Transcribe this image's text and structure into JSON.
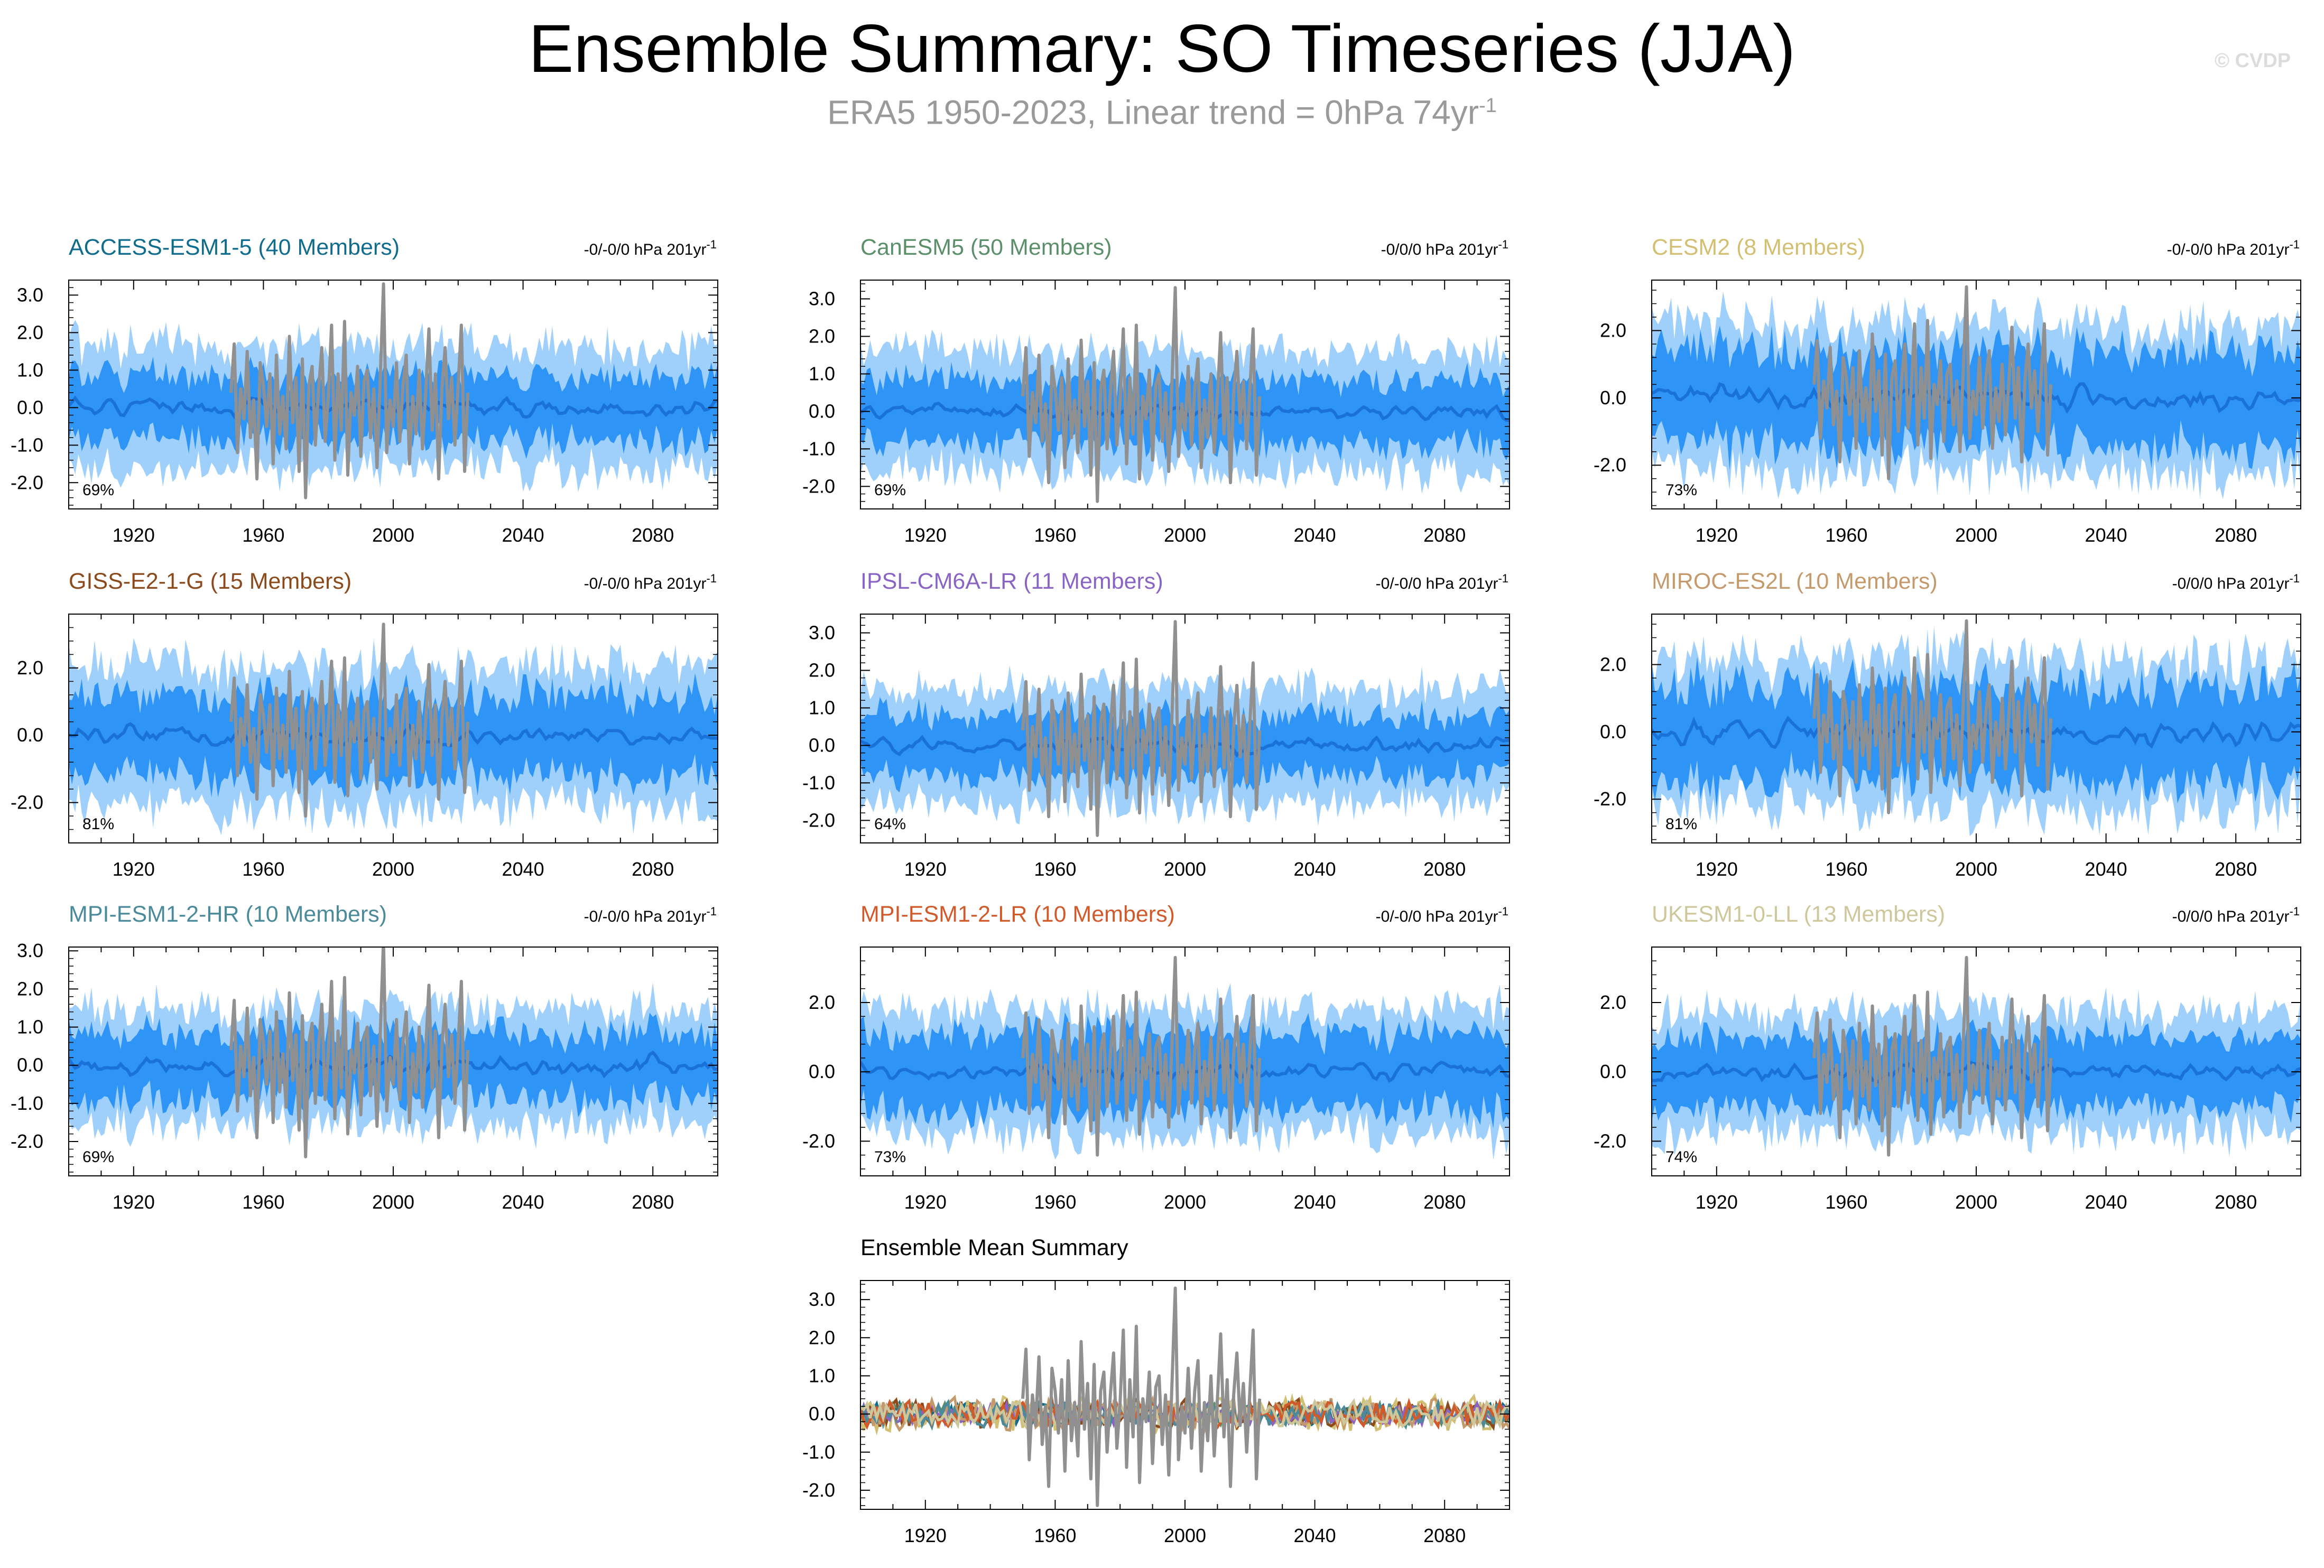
{
  "header": {
    "title": "Ensemble Summary: SO Timeseries (JJA)",
    "subtitle_main": "ERA5 1950-2023, Linear trend = 0hPa 74yr",
    "subtitle_exp": "-1",
    "credit": "© CVDP"
  },
  "colors": {
    "band_outer": "#9fd0fb",
    "band_inner": "#2e95f6",
    "mean_line": "#1a72d8",
    "obs_line": "#909090"
  },
  "chart_data": [
    {
      "type": "area",
      "title": "ACCESS-ESM1-5 (40 Members)",
      "title_color": "#0f6c8c",
      "trend_text": "-0/-0/0 hPa 201yr",
      "trend_exp": "-1",
      "percent": "69%",
      "xlim": [
        1900,
        2100
      ],
      "ylim": [
        -2.7,
        3.4
      ],
      "yticks": [
        3.0,
        2.0,
        1.0,
        0.0,
        -1.0,
        -2.0
      ],
      "ytick_labels": [
        "3.0",
        "2.0",
        "1.0",
        "0.0",
        "-1.0",
        "-2.0"
      ],
      "xticks": [
        1920,
        1960,
        2000,
        2040,
        2080
      ],
      "xtick_labels": [
        "1920",
        "1960",
        "2000",
        "2040",
        "2080"
      ],
      "outer_amp": 1.65,
      "inner_amp": 0.85,
      "mean_amp": 0.3,
      "seed": 1
    },
    {
      "type": "area",
      "title": "CanESM5 (50 Members)",
      "title_color": "#5a8f6a",
      "trend_text": "-0/0/0 hPa 201yr",
      "trend_exp": "-1",
      "percent": "69%",
      "xlim": [
        1900,
        2100
      ],
      "ylim": [
        -2.6,
        3.5
      ],
      "yticks": [
        3.0,
        2.0,
        1.0,
        0.0,
        -1.0,
        -2.0
      ],
      "ytick_labels": [
        "3.0",
        "2.0",
        "1.0",
        "0.0",
        "-1.0",
        "-2.0"
      ],
      "xticks": [
        1920,
        1960,
        2000,
        2040,
        2080
      ],
      "xtick_labels": [
        "1920",
        "1960",
        "2000",
        "2040",
        "2080"
      ],
      "outer_amp": 1.6,
      "inner_amp": 0.85,
      "mean_amp": 0.3,
      "seed": 2
    },
    {
      "type": "area",
      "title": "CESM2 (8 Members)",
      "title_color": "#d2bf72",
      "trend_text": "-0/-0/0 hPa 201yr",
      "trend_exp": "-1",
      "percent": "73%",
      "xlim": [
        1900,
        2100
      ],
      "ylim": [
        -3.3,
        3.5
      ],
      "yticks": [
        2.0,
        0.0,
        -2.0
      ],
      "ytick_labels": [
        "2.0",
        "0.0",
        "-2.0"
      ],
      "xticks": [
        1920,
        1960,
        2000,
        2040,
        2080
      ],
      "xtick_labels": [
        "1920",
        "1960",
        "2000",
        "2040",
        "2080"
      ],
      "outer_amp": 2.2,
      "inner_amp": 1.4,
      "mean_amp": 0.5,
      "seed": 3
    },
    {
      "type": "area",
      "title": "GISS-E2-1-G (15 Members)",
      "title_color": "#8a4a1c",
      "trend_text": "-0/-0/0 hPa 201yr",
      "trend_exp": "-1",
      "percent": "81%",
      "xlim": [
        1900,
        2100
      ],
      "ylim": [
        -3.2,
        3.6
      ],
      "yticks": [
        2.0,
        0.0,
        -2.0
      ],
      "ytick_labels": [
        "2.0",
        "0.0",
        "-2.0"
      ],
      "xticks": [
        1920,
        1960,
        2000,
        2040,
        2080
      ],
      "xtick_labels": [
        "1920",
        "1960",
        "2000",
        "2040",
        "2080"
      ],
      "outer_amp": 2.1,
      "inner_amp": 1.2,
      "mean_amp": 0.4,
      "seed": 4
    },
    {
      "type": "area",
      "title": "IPSL-CM6A-LR (11 Members)",
      "title_color": "#8a64c4",
      "trend_text": "-0/-0/0 hPa 201yr",
      "trend_exp": "-1",
      "percent": "64%",
      "xlim": [
        1900,
        2100
      ],
      "ylim": [
        -2.6,
        3.5
      ],
      "yticks": [
        3.0,
        2.0,
        1.0,
        0.0,
        -1.0,
        -2.0
      ],
      "ytick_labels": [
        "3.0",
        "2.0",
        "1.0",
        "0.0",
        "-1.0",
        "-2.0"
      ],
      "xticks": [
        1920,
        1960,
        2000,
        2040,
        2080
      ],
      "xtick_labels": [
        "1920",
        "1960",
        "2000",
        "2040",
        "2080"
      ],
      "outer_amp": 1.55,
      "inner_amp": 0.8,
      "mean_amp": 0.3,
      "seed": 5
    },
    {
      "type": "area",
      "title": "MIROC-ES2L (10 Members)",
      "title_color": "#c49a6c",
      "trend_text": "-0/0/0 hPa 201yr",
      "trend_exp": "-1",
      "percent": "81%",
      "xlim": [
        1900,
        2100
      ],
      "ylim": [
        -3.3,
        3.5
      ],
      "yticks": [
        2.0,
        0.0,
        -2.0
      ],
      "ytick_labels": [
        "2.0",
        "0.0",
        "-2.0"
      ],
      "xticks": [
        1920,
        1960,
        2000,
        2040,
        2080
      ],
      "xtick_labels": [
        "1920",
        "1960",
        "2000",
        "2040",
        "2080"
      ],
      "outer_amp": 2.2,
      "inner_amp": 1.4,
      "mean_amp": 0.5,
      "seed": 6
    },
    {
      "type": "area",
      "title": "MPI-ESM1-2-HR (10 Members)",
      "title_color": "#4a8a9a",
      "trend_text": "-0/-0/0 hPa 201yr",
      "trend_exp": "-1",
      "percent": "69%",
      "xlim": [
        1900,
        2100
      ],
      "ylim": [
        -2.9,
        3.1
      ],
      "yticks": [
        3.0,
        2.0,
        1.0,
        0.0,
        -1.0,
        -2.0
      ],
      "ytick_labels": [
        "3.0",
        "2.0",
        "1.0",
        "0.0",
        "-1.0",
        "-2.0"
      ],
      "xticks": [
        1920,
        1960,
        2000,
        2040,
        2080
      ],
      "xtick_labels": [
        "1920",
        "1960",
        "2000",
        "2040",
        "2080"
      ],
      "outer_amp": 1.5,
      "inner_amp": 0.85,
      "mean_amp": 0.35,
      "seed": 7
    },
    {
      "type": "area",
      "title": "MPI-ESM1-2-LR (10 Members)",
      "title_color": "#d05a2a",
      "trend_text": "-0/-0/0 hPa 201yr",
      "trend_exp": "-1",
      "percent": "73%",
      "xlim": [
        1900,
        2100
      ],
      "ylim": [
        -3.0,
        3.6
      ],
      "yticks": [
        2.0,
        0.0,
        -2.0
      ],
      "ytick_labels": [
        "2.0",
        "0.0",
        "-2.0"
      ],
      "xticks": [
        1920,
        1960,
        2000,
        2040,
        2080
      ],
      "xtick_labels": [
        "1920",
        "1960",
        "2000",
        "2040",
        "2080"
      ],
      "outer_amp": 1.8,
      "inner_amp": 1.1,
      "mean_amp": 0.35,
      "seed": 8
    },
    {
      "type": "area",
      "title": "UKESM1-0-LL (13 Members)",
      "title_color": "#cfc79c",
      "trend_text": "-0/0/0 hPa 201yr",
      "trend_exp": "-1",
      "percent": "74%",
      "xlim": [
        1900,
        2100
      ],
      "ylim": [
        -3.0,
        3.6
      ],
      "yticks": [
        2.0,
        0.0,
        -2.0
      ],
      "ytick_labels": [
        "2.0",
        "0.0",
        "-2.0"
      ],
      "xticks": [
        1920,
        1960,
        2000,
        2040,
        2080
      ],
      "xtick_labels": [
        "1920",
        "1960",
        "2000",
        "2040",
        "2080"
      ],
      "outer_amp": 1.75,
      "inner_amp": 1.0,
      "mean_amp": 0.35,
      "seed": 9
    },
    {
      "type": "line",
      "title": "Ensemble Mean Summary",
      "title_color": "#000000",
      "xlim": [
        1900,
        2100
      ],
      "ylim": [
        -2.5,
        3.5
      ],
      "yticks": [
        3.0,
        2.0,
        1.0,
        0.0,
        -1.0,
        -2.0
      ],
      "ytick_labels": [
        "3.0",
        "2.0",
        "1.0",
        "0.0",
        "-1.0",
        "-2.0"
      ],
      "xticks": [
        1920,
        1960,
        2000,
        2040,
        2080
      ],
      "xtick_labels": [
        "1920",
        "1960",
        "2000",
        "2040",
        "2080"
      ],
      "series": [
        {
          "name": "ACCESS-ESM1-5",
          "color": "#0f6c8c",
          "amp": 0.3,
          "seed": 11
        },
        {
          "name": "CanESM5",
          "color": "#5a8f6a",
          "amp": 0.3,
          "seed": 12
        },
        {
          "name": "CESM2",
          "color": "#d2bf72",
          "amp": 0.5,
          "seed": 13
        },
        {
          "name": "GISS-E2-1-G",
          "color": "#8a4a1c",
          "amp": 0.4,
          "seed": 14
        },
        {
          "name": "IPSL-CM6A-LR",
          "color": "#8a64c4",
          "amp": 0.3,
          "seed": 15
        },
        {
          "name": "MIROC-ES2L",
          "color": "#c49a6c",
          "amp": 0.45,
          "seed": 16
        },
        {
          "name": "MPI-ESM1-2-HR",
          "color": "#4a8a9a",
          "amp": 0.35,
          "seed": 17
        },
        {
          "name": "MPI-ESM1-2-LR",
          "color": "#d05a2a",
          "amp": 0.35,
          "seed": 18
        },
        {
          "name": "UKESM1-0-LL",
          "color": "#cfc79c",
          "amp": 0.35,
          "seed": 19
        }
      ]
    }
  ],
  "observed": {
    "name": "ERA5",
    "years": [
      1950,
      1951,
      1952,
      1953,
      1954,
      1955,
      1956,
      1957,
      1958,
      1959,
      1960,
      1961,
      1962,
      1963,
      1964,
      1965,
      1966,
      1967,
      1968,
      1969,
      1970,
      1971,
      1972,
      1973,
      1974,
      1975,
      1976,
      1977,
      1978,
      1979,
      1980,
      1981,
      1982,
      1983,
      1984,
      1985,
      1986,
      1987,
      1988,
      1989,
      1990,
      1991,
      1992,
      1993,
      1994,
      1995,
      1996,
      1997,
      1998,
      1999,
      2000,
      2001,
      2002,
      2003,
      2004,
      2005,
      2006,
      2007,
      2008,
      2009,
      2010,
      2011,
      2012,
      2013,
      2014,
      2015,
      2016,
      2017,
      2018,
      2019,
      2020,
      2021,
      2022,
      2023
    ],
    "values": [
      0.4,
      1.7,
      -1.2,
      0.5,
      -0.3,
      1.5,
      -0.8,
      0.2,
      -1.9,
      1.2,
      0.6,
      -0.5,
      0.9,
      -1.5,
      1.4,
      -0.7,
      0.3,
      -1.1,
      1.9,
      -0.4,
      0.8,
      -1.7,
      1.3,
      -2.4,
      0.6,
      1.1,
      -1.0,
      0.5,
      1.6,
      -0.9,
      0.3,
      2.2,
      -1.4,
      0.9,
      -0.6,
      2.3,
      -1.8,
      0.4,
      -0.2,
      1.1,
      -1.3,
      0.7,
      1.0,
      -0.8,
      0.5,
      -1.6,
      0.8,
      3.3,
      -1.2,
      0.2,
      -0.5,
      1.2,
      -0.9,
      0.6,
      1.4,
      -1.5,
      0.3,
      -0.7,
      1.0,
      -1.1,
      0.4,
      2.1,
      -0.6,
      0.9,
      -1.9,
      0.5,
      1.6,
      -0.3,
      0.8,
      -1.0,
      0.6,
      2.2,
      -1.7,
      0.4
    ]
  }
}
